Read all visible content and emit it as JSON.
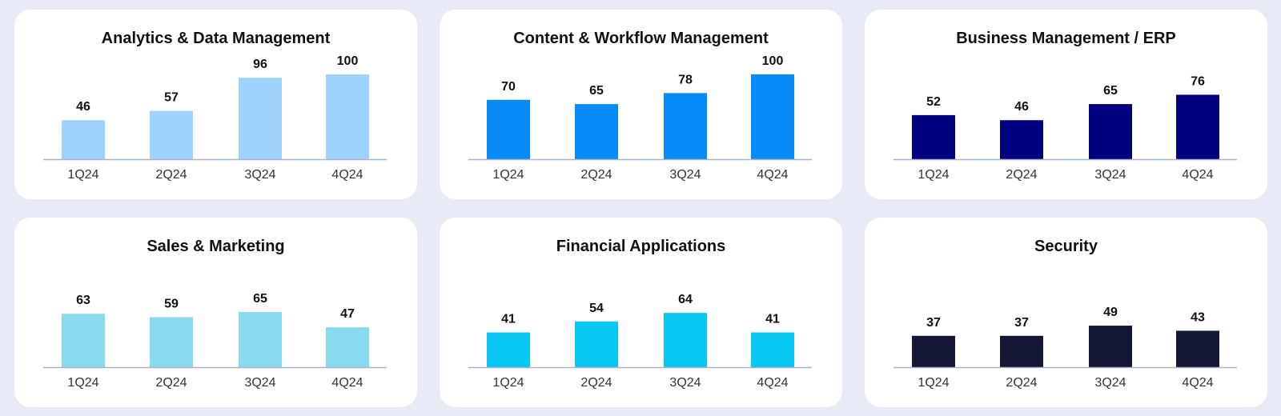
{
  "chart_data": [
    {
      "type": "bar",
      "title": "Analytics & Data Management",
      "categories": [
        "1Q24",
        "2Q24",
        "3Q24",
        "4Q24"
      ],
      "values": [
        46,
        57,
        96,
        100
      ],
      "color": "#9fd2fd",
      "ylim": [
        0,
        100
      ],
      "grid": false
    },
    {
      "type": "bar",
      "title": "Content & Workflow Management",
      "categories": [
        "1Q24",
        "2Q24",
        "3Q24",
        "4Q24"
      ],
      "values": [
        70,
        65,
        78,
        100
      ],
      "color": "#078bf8",
      "ylim": [
        0,
        100
      ],
      "grid": false
    },
    {
      "type": "bar",
      "title": "Business Management / ERP",
      "categories": [
        "1Q24",
        "2Q24",
        "3Q24",
        "4Q24"
      ],
      "values": [
        52,
        46,
        65,
        76
      ],
      "color": "#020280",
      "ylim": [
        0,
        100
      ],
      "grid": false
    },
    {
      "type": "bar",
      "title": "Sales & Marketing",
      "categories": [
        "1Q24",
        "2Q24",
        "3Q24",
        "4Q24"
      ],
      "values": [
        63,
        59,
        65,
        47
      ],
      "color": "#88dbee",
      "ylim": [
        0,
        100
      ],
      "grid": false
    },
    {
      "type": "bar",
      "title": "Financial Applications",
      "categories": [
        "1Q24",
        "2Q24",
        "3Q24",
        "4Q24"
      ],
      "values": [
        41,
        54,
        64,
        41
      ],
      "color": "#09c6f2",
      "ylim": [
        0,
        100
      ],
      "grid": false
    },
    {
      "type": "bar",
      "title": "Security",
      "categories": [
        "1Q24",
        "2Q24",
        "3Q24",
        "4Q24"
      ],
      "values": [
        37,
        37,
        49,
        43
      ],
      "color": "#141733",
      "ylim": [
        0,
        100
      ],
      "grid": false
    }
  ],
  "colors": {
    "background": "#e8ebf5",
    "card": "#ffffff",
    "axis": "#a9b4c8"
  }
}
